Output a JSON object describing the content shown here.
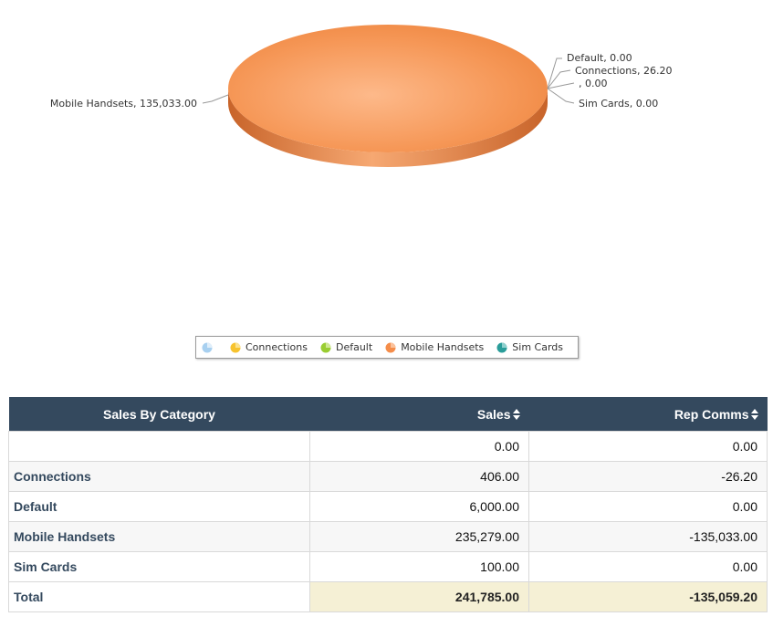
{
  "chart_data": {
    "type": "pie",
    "title": "",
    "slices": [
      {
        "label": "Default",
        "value": 0.0,
        "display": "Default, 0.00",
        "color": "#9acd32"
      },
      {
        "label": "Connections",
        "value": 26.2,
        "display": "Connections, 26.20",
        "color": "#f7c32e"
      },
      {
        "label": "",
        "value": 0.0,
        "display": ", 0.00",
        "color": "#a8d0f0"
      },
      {
        "label": "Sim Cards",
        "value": 0.0,
        "display": "Sim Cards, 0.00",
        "color": "#2a9d9a"
      },
      {
        "label": "Mobile Handsets",
        "value": 135033.0,
        "display": "Mobile Handsets, 135,033.00",
        "color": "#f58d4a"
      }
    ],
    "legend": {
      "position": "bottom",
      "items": [
        {
          "label": "",
          "color": "#a8d0f0"
        },
        {
          "label": "Connections",
          "color": "#f7c32e"
        },
        {
          "label": "Default",
          "color": "#9acd32"
        },
        {
          "label": "Mobile Handsets",
          "color": "#f58d4a"
        },
        {
          "label": "Sim Cards",
          "color": "#2a9d9a"
        }
      ]
    }
  },
  "table": {
    "headers": {
      "category": "Sales By Category",
      "sales": "Sales",
      "comms": "Rep Comms"
    },
    "rows": [
      {
        "category": "",
        "sales": "0.00",
        "comms": "0.00"
      },
      {
        "category": "Connections",
        "sales": "406.00",
        "comms": "-26.20"
      },
      {
        "category": "Default",
        "sales": "6,000.00",
        "comms": "0.00"
      },
      {
        "category": "Mobile Handsets",
        "sales": "235,279.00",
        "comms": "-135,033.00"
      },
      {
        "category": "Sim Cards",
        "sales": "100.00",
        "comms": "0.00"
      }
    ],
    "total": {
      "category": "Total",
      "sales": "241,785.00",
      "comms": "-135,059.20"
    }
  },
  "colors": {
    "header_bg": "#34495e",
    "total_bg": "#f5f0d5",
    "pie_main": "#f58d4a"
  }
}
